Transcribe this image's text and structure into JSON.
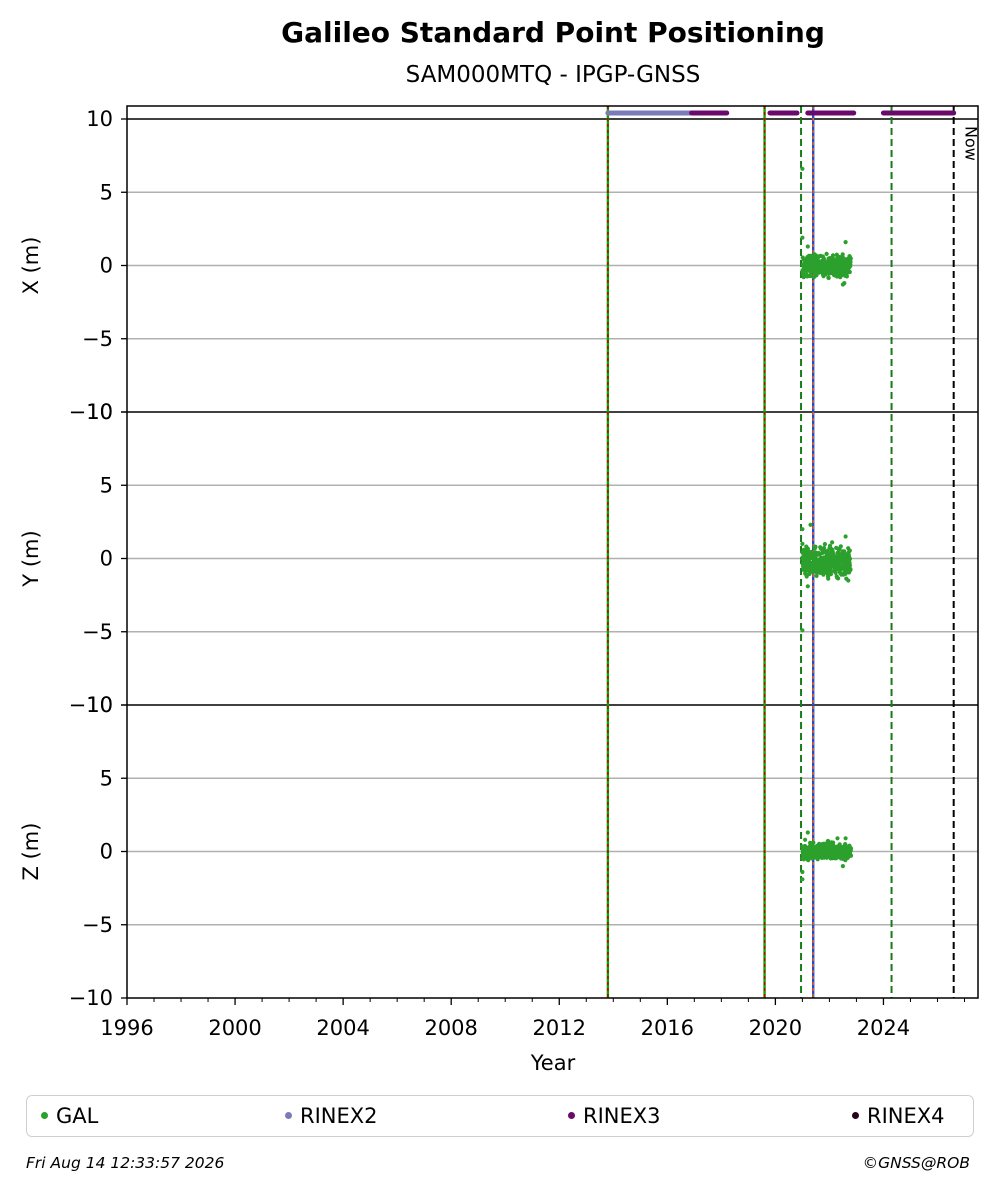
{
  "chart_data": {
    "type": "scatter",
    "title": "Galileo Standard Point Positioning",
    "subtitle": "SAM000MTQ - IPGP-GNSS",
    "xlabel": "Year",
    "xlim": [
      1996,
      2027.5
    ],
    "xticks": [
      "1996",
      "2000",
      "2004",
      "2008",
      "2012",
      "2016",
      "2020",
      "2024"
    ],
    "xtick_values": [
      1996,
      2000,
      2004,
      2008,
      2012,
      2016,
      2020,
      2024
    ],
    "ylim": [
      -10,
      10
    ],
    "yticks": [
      "−10",
      "−5",
      "0",
      "5",
      "10"
    ],
    "ytick_values": [
      -10,
      -5,
      0,
      5,
      10
    ],
    "grid": true,
    "panels": [
      {
        "ylabel": "X (m)",
        "series": "GAL",
        "cluster": {
          "x_start": 2021.0,
          "x_end": 2022.8,
          "y_center": 0.0,
          "y_spread": 0.6
        },
        "outliers": [
          [
            2021.0,
            6.6
          ],
          [
            2021.0,
            1.9
          ],
          [
            2021.05,
            -0.8
          ],
          [
            2022.6,
            1.6
          ],
          [
            2022.5,
            -1.3
          ],
          [
            2022.55,
            -1.2
          ],
          [
            2021.2,
            1.3
          ]
        ]
      },
      {
        "ylabel": "Y (m)",
        "series": "GAL",
        "cluster": {
          "x_start": 2021.0,
          "x_end": 2022.8,
          "y_center": -0.3,
          "y_spread": 0.9
        },
        "outliers": [
          [
            2021.0,
            -4.9
          ],
          [
            2021.0,
            2.0
          ],
          [
            2021.2,
            -1.9
          ],
          [
            2021.3,
            2.3
          ],
          [
            2022.6,
            1.5
          ],
          [
            2022.7,
            -1.5
          ],
          [
            2021.0,
            1.0
          ],
          [
            2022.1,
            1.1
          ]
        ]
      },
      {
        "ylabel": "Z (m)",
        "series": "GAL",
        "cluster": {
          "x_start": 2021.0,
          "x_end": 2022.8,
          "y_center": 0.0,
          "y_spread": 0.5
        },
        "outliers": [
          [
            2021.0,
            -1.9
          ],
          [
            2021.0,
            -1.4
          ],
          [
            2021.2,
            1.3
          ],
          [
            2022.5,
            -1.0
          ],
          [
            2022.6,
            0.9
          ],
          [
            2021.1,
            0.8
          ],
          [
            2022.3,
            0.9
          ]
        ]
      }
    ],
    "rinex_bars": [
      {
        "series": "RINEX2",
        "start": 2013.8,
        "end": 2016.9
      },
      {
        "series": "RINEX3",
        "start": 2016.9,
        "end": 2018.2
      },
      {
        "series": "RINEX3",
        "start": 2019.8,
        "end": 2020.8
      },
      {
        "series": "RINEX3",
        "start": 2021.2,
        "end": 2022.9
      },
      {
        "series": "RINEX3",
        "start": 2024.0,
        "end": 2026.6
      }
    ],
    "vlines": [
      {
        "x": 2013.8,
        "style": "solid",
        "colors": [
          "#00aa00",
          "#cc0000"
        ]
      },
      {
        "x": 2019.6,
        "style": "solid",
        "colors": [
          "#00aa00",
          "#cc0000"
        ]
      },
      {
        "x": 2020.95,
        "style": "dashed",
        "colors": [
          "#1a7a1a"
        ]
      },
      {
        "x": 2021.4,
        "style": "solid",
        "colors": [
          "#1f4fd0",
          "#e8591a"
        ]
      },
      {
        "x": 2024.3,
        "style": "dashed",
        "colors": [
          "#1a7a1a"
        ]
      },
      {
        "x": 2026.6,
        "style": "dashed",
        "colors": [
          "#000000"
        ],
        "label": "Now"
      }
    ],
    "legend": [
      {
        "name": "GAL",
        "color": "#2ca02c"
      },
      {
        "name": "RINEX2",
        "color": "#7b7bb7"
      },
      {
        "name": "RINEX3",
        "color": "#6a0a6a"
      },
      {
        "name": "RINEX4",
        "color": "#2a0018"
      }
    ],
    "legend_position": "bottom"
  },
  "footer": {
    "timestamp": "Fri Aug 14 12:33:57 2026",
    "copyright": "©GNSS@ROB"
  }
}
